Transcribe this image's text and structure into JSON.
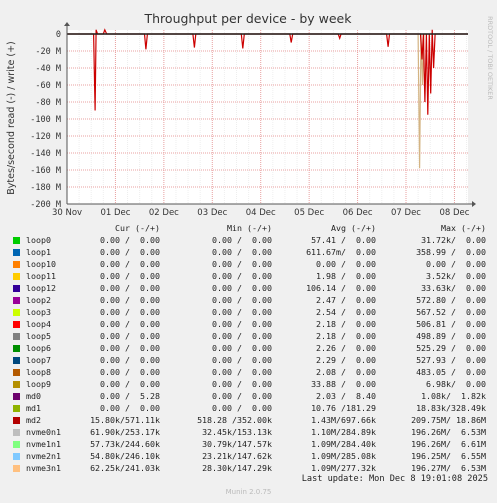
{
  "chart_data": {
    "type": "line",
    "title": "Throughput per device - by week",
    "ylabel": "Bytes/second read (-) / write (+)",
    "side_label": "RRDTOOL / TOBI OETIKER",
    "ylim": [
      -200,
      5
    ],
    "yticks": [
      0,
      -20,
      -40,
      -60,
      -80,
      -100,
      -120,
      -140,
      -160,
      -180,
      -200
    ],
    "ytick_labels": [
      "0",
      "-20 M",
      "-40 M",
      "-60 M",
      "-80 M",
      "-100 M",
      "-120 M",
      "-140 M",
      "-160 M",
      "-180 M",
      "-200 M"
    ],
    "xticks": [
      0,
      1,
      2,
      3,
      4,
      5,
      6,
      7,
      8
    ],
    "xtick_labels": [
      "30 Nov",
      "01 Dec",
      "02 Dec",
      "03 Dec",
      "04 Dec",
      "05 Dec",
      "06 Dec",
      "07 Dec",
      "08 Dec"
    ],
    "xlim": [
      0,
      8.28
    ],
    "series": [
      {
        "name": "md2",
        "color": "#cc0000",
        "x": [
          0.0,
          0.55,
          0.58,
          0.6,
          0.63,
          0.66,
          0.75,
          0.78,
          0.82,
          1.0,
          1.6,
          1.63,
          1.66,
          1.69,
          2.6,
          2.63,
          2.66,
          2.69,
          3.6,
          3.63,
          3.66,
          3.69,
          4.6,
          4.63,
          4.66,
          4.69,
          5.6,
          5.63,
          5.66,
          5.69,
          6.6,
          6.63,
          6.66,
          6.69,
          7.3,
          7.33,
          7.36,
          7.39,
          7.42,
          7.45,
          7.48,
          7.51,
          7.54,
          7.57,
          7.6,
          7.65,
          8.28
        ],
        "values": [
          0,
          0,
          -90,
          5,
          0,
          0,
          0,
          5,
          0,
          0,
          0,
          -18,
          0,
          0,
          0,
          -16,
          0,
          0,
          0,
          -17,
          0,
          0,
          0,
          -10,
          0,
          0,
          0,
          -5,
          0,
          0,
          0,
          -15,
          0,
          0,
          0,
          -30,
          0,
          -80,
          0,
          -95,
          0,
          -70,
          5,
          -40,
          0,
          0,
          0
        ]
      },
      {
        "name": "nvme",
        "color": "#d4b483",
        "x": [
          0.0,
          7.25,
          7.28,
          7.31,
          7.34,
          7.37,
          8.28
        ],
        "values": [
          0,
          0,
          -158,
          0,
          -60,
          0,
          0
        ]
      }
    ],
    "legend_header": {
      "cur": "Cur (-/+)",
      "min": "Min (-/+)",
      "avg": "Avg (-/+)",
      "max": "Max (-/+)"
    },
    "legend": [
      {
        "name": "loop0",
        "color": "#00cc00",
        "cur": "0.00 /  0.00",
        "min": "0.00 /  0.00",
        "avg": "57.41 /  0.00",
        "max": "31.72k/  0.00"
      },
      {
        "name": "loop1",
        "color": "#0066b3",
        "cur": "0.00 /  0.00",
        "min": "0.00 /  0.00",
        "avg": "611.67m/  0.00",
        "max": "358.99 /  0.00"
      },
      {
        "name": "loop10",
        "color": "#ff8000",
        "cur": "0.00 /  0.00",
        "min": "0.00 /  0.00",
        "avg": "0.00 /  0.00",
        "max": "0.00 /  0.00"
      },
      {
        "name": "loop11",
        "color": "#ffcc00",
        "cur": "0.00 /  0.00",
        "min": "0.00 /  0.00",
        "avg": "1.98 /  0.00",
        "max": "3.52k/  0.00"
      },
      {
        "name": "loop12",
        "color": "#330099",
        "cur": "0.00 /  0.00",
        "min": "0.00 /  0.00",
        "avg": "106.14 /  0.00",
        "max": "33.63k/  0.00"
      },
      {
        "name": "loop2",
        "color": "#990099",
        "cur": "0.00 /  0.00",
        "min": "0.00 /  0.00",
        "avg": "2.47 /  0.00",
        "max": "572.80 /  0.00"
      },
      {
        "name": "loop3",
        "color": "#ccff00",
        "cur": "0.00 /  0.00",
        "min": "0.00 /  0.00",
        "avg": "2.54 /  0.00",
        "max": "567.52 /  0.00"
      },
      {
        "name": "loop4",
        "color": "#ff0000",
        "cur": "0.00 /  0.00",
        "min": "0.00 /  0.00",
        "avg": "2.18 /  0.00",
        "max": "506.81 /  0.00"
      },
      {
        "name": "loop5",
        "color": "#808080",
        "cur": "0.00 /  0.00",
        "min": "0.00 /  0.00",
        "avg": "2.18 /  0.00",
        "max": "498.89 /  0.00"
      },
      {
        "name": "loop6",
        "color": "#008f00",
        "cur": "0.00 /  0.00",
        "min": "0.00 /  0.00",
        "avg": "2.26 /  0.00",
        "max": "525.29 /  0.00"
      },
      {
        "name": "loop7",
        "color": "#00487d",
        "cur": "0.00 /  0.00",
        "min": "0.00 /  0.00",
        "avg": "2.29 /  0.00",
        "max": "527.93 /  0.00"
      },
      {
        "name": "loop8",
        "color": "#b35a00",
        "cur": "0.00 /  0.00",
        "min": "0.00 /  0.00",
        "avg": "2.08 /  0.00",
        "max": "483.05 /  0.00"
      },
      {
        "name": "loop9",
        "color": "#b38f00",
        "cur": "0.00 /  0.00",
        "min": "0.00 /  0.00",
        "avg": "33.88 /  0.00",
        "max": "6.98k/  0.00"
      },
      {
        "name": "md0",
        "color": "#6b006b",
        "cur": "0.00 /  5.28",
        "min": "0.00 /  0.00",
        "avg": "2.03 /  8.40",
        "max": "1.08k/  1.82k"
      },
      {
        "name": "md1",
        "color": "#8fb300",
        "cur": "0.00 /  0.00",
        "min": "0.00 /  0.00",
        "avg": "10.76 /181.29",
        "max": "18.83k/328.49k"
      },
      {
        "name": "md2",
        "color": "#b30000",
        "cur": "15.80k/571.11k",
        "min": "518.28 /352.00k",
        "avg": "1.43M/697.66k",
        "max": "209.75M/ 18.86M"
      },
      {
        "name": "nvme0n1",
        "color": "#bebebe",
        "cur": "61.90k/253.17k",
        "min": "32.45k/153.13k",
        "avg": "1.10M/284.89k",
        "max": "196.26M/  6.53M"
      },
      {
        "name": "nvme1n1",
        "color": "#80ff80",
        "cur": "57.73k/244.60k",
        "min": "30.79k/147.57k",
        "avg": "1.09M/284.40k",
        "max": "196.26M/  6.61M"
      },
      {
        "name": "nvme2n1",
        "color": "#80c9ff",
        "cur": "54.80k/246.10k",
        "min": "23.21k/147.62k",
        "avg": "1.09M/285.08k",
        "max": "196.25M/  6.55M"
      },
      {
        "name": "nvme3n1",
        "color": "#ffc080",
        "cur": "62.25k/241.03k",
        "min": "28.30k/147.29k",
        "avg": "1.09M/277.32k",
        "max": "196.27M/  6.53M"
      }
    ]
  },
  "footer": {
    "last_update": "Last update: Mon Dec  8 19:01:08 2025",
    "version": "Munin 2.0.75"
  }
}
